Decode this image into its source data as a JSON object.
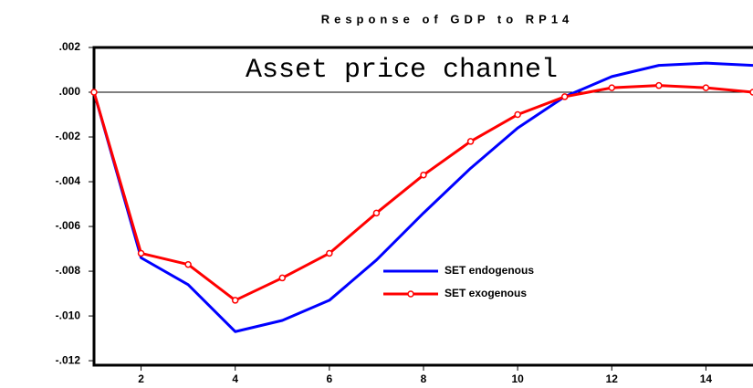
{
  "chart_data": {
    "type": "line",
    "title": "Response of GDP to RP14",
    "annotation": "Asset price channel",
    "x": [
      1,
      2,
      3,
      4,
      5,
      6,
      7,
      8,
      9,
      10,
      11,
      12,
      13,
      14,
      15
    ],
    "series": [
      {
        "name": "SET endogenous",
        "color": "#0000ff",
        "marker": false,
        "values": [
          0,
          -0.0074,
          -0.0086,
          -0.0107,
          -0.0102,
          -0.0093,
          -0.0075,
          -0.0054,
          -0.0034,
          -0.0016,
          -0.0002,
          0.0007,
          0.0012,
          0.0013,
          0.0012
        ]
      },
      {
        "name": "SET exogenous",
        "color": "#ff0000",
        "marker": true,
        "values": [
          0,
          -0.0072,
          -0.0077,
          -0.0093,
          -0.0083,
          -0.0072,
          -0.0054,
          -0.0037,
          -0.0022,
          -0.001,
          -0.0002,
          0.0002,
          0.0003,
          0.0002,
          0.0
        ]
      }
    ],
    "xlim": [
      1,
      15
    ],
    "xticks": [
      2,
      4,
      6,
      8,
      10,
      12,
      14
    ],
    "ylim": [
      -0.0122,
      0.002
    ],
    "yticks": [
      {
        "value": 0.002,
        "label": ".002"
      },
      {
        "value": 0,
        "label": ".000"
      },
      {
        "value": -0.002,
        "label": "-.002"
      },
      {
        "value": -0.004,
        "label": "-.004"
      },
      {
        "value": -0.006,
        "label": "-.006"
      },
      {
        "value": -0.008,
        "label": "-.008"
      },
      {
        "value": -0.01,
        "label": "-.010"
      },
      {
        "value": -0.012,
        "label": "-.012"
      }
    ],
    "zero_line": true
  }
}
